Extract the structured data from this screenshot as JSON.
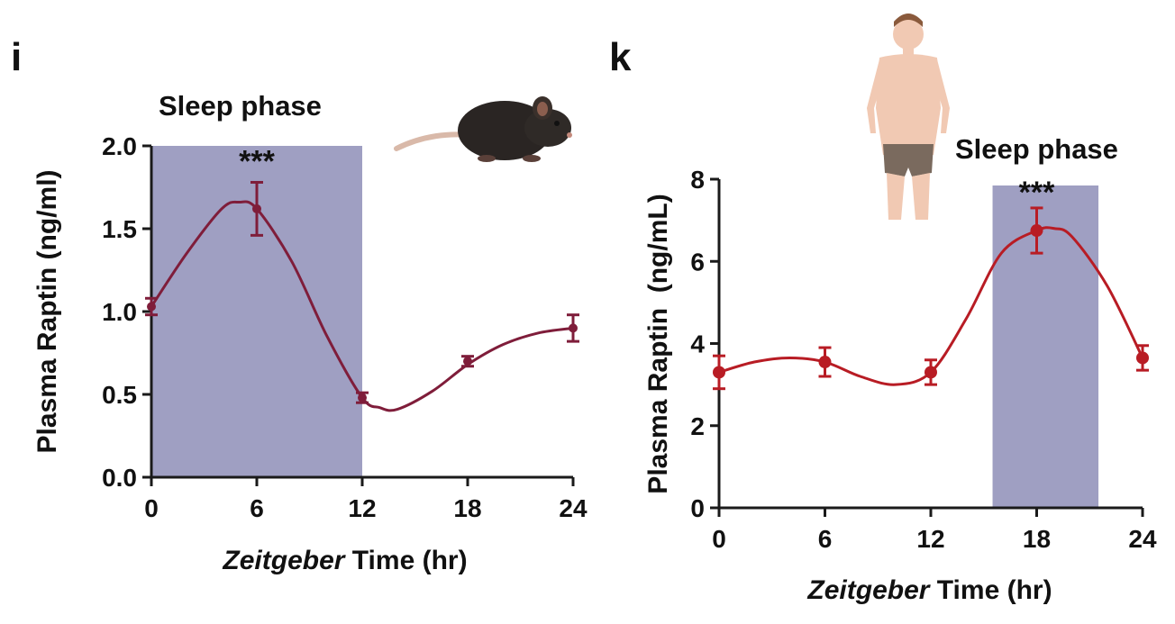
{
  "colors": {
    "shade": "#9f9fc2",
    "mouse_line": "#7f1d3a",
    "human_line": "#b81c24",
    "axis": "#1a1a1a"
  },
  "chart_data": [
    {
      "type": "line",
      "panel": "i",
      "phase_label": "Sleep phase",
      "phase_x": [
        0,
        12
      ],
      "significance": {
        "x": 6,
        "label": "***"
      },
      "xlabel_italic": "Zeitgeber",
      "xlabel_rest": " Time (hr)",
      "ylabel": "Plasma Raptin (ng/ml)",
      "xlim": [
        0,
        24
      ],
      "ylim": [
        0,
        2.0
      ],
      "xticks": [
        0,
        6,
        12,
        18,
        24
      ],
      "yticks": [
        0.0,
        0.5,
        1.0,
        1.5,
        2.0
      ],
      "ytick_labels": [
        "0.0",
        "0.5",
        "1.0",
        "1.5",
        "2.0"
      ],
      "xtick_labels": [
        "0",
        "6",
        "12",
        "18",
        "24"
      ],
      "points": {
        "x": [
          0,
          6,
          12,
          18,
          24
        ],
        "y": [
          1.03,
          1.62,
          0.48,
          0.7,
          0.9
        ],
        "err": [
          0.05,
          0.16,
          0.03,
          0.03,
          0.08
        ]
      },
      "curve": {
        "x": [
          0,
          2,
          4,
          5,
          6,
          8,
          10,
          12,
          13,
          14,
          16,
          18,
          20,
          22,
          24
        ],
        "y": [
          1.03,
          1.35,
          1.62,
          1.66,
          1.62,
          1.3,
          0.85,
          0.48,
          0.42,
          0.41,
          0.52,
          0.68,
          0.8,
          0.87,
          0.9
        ]
      }
    },
    {
      "type": "line",
      "panel": "k",
      "phase_label": "Sleep phase",
      "phase_x": [
        15.5,
        21.5
      ],
      "significance": {
        "x": 18,
        "label": "***"
      },
      "xlabel_italic": "Zeitgeber",
      "xlabel_rest": " Time (hr)",
      "ylabel": "Plasma Raptin  (ng/mL)",
      "xlim": [
        0,
        24
      ],
      "ylim": [
        0,
        8
      ],
      "xticks": [
        0,
        6,
        12,
        18,
        24
      ],
      "yticks": [
        0,
        2,
        4,
        6,
        8
      ],
      "ytick_labels": [
        "0",
        "2",
        "4",
        "6",
        "8"
      ],
      "xtick_labels": [
        "0",
        "6",
        "12",
        "18",
        "24"
      ],
      "points": {
        "x": [
          0,
          6,
          12,
          18,
          24
        ],
        "y": [
          3.3,
          3.55,
          3.3,
          6.75,
          3.65
        ],
        "err": [
          0.4,
          0.35,
          0.3,
          0.55,
          0.3
        ]
      },
      "curve": {
        "x": [
          0,
          2,
          4,
          6,
          8,
          10,
          12,
          14,
          16,
          18,
          19,
          20,
          22,
          24
        ],
        "y": [
          3.3,
          3.55,
          3.65,
          3.55,
          3.2,
          3.0,
          3.3,
          4.6,
          6.2,
          6.75,
          6.8,
          6.6,
          5.4,
          3.65
        ]
      }
    }
  ]
}
